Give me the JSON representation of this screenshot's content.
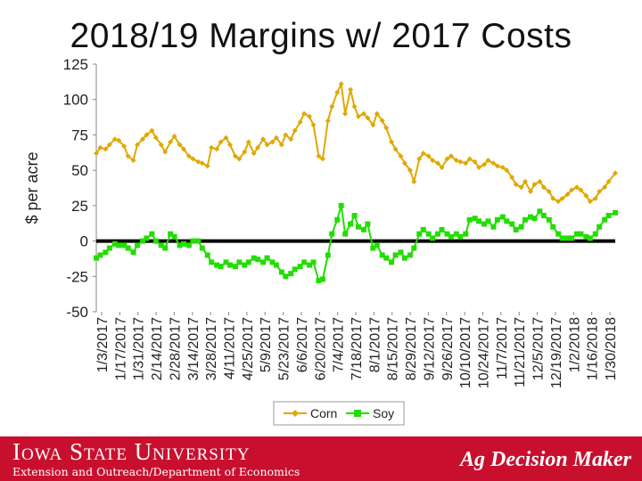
{
  "chart_data": {
    "type": "line",
    "title": "2018/19 Margins w/ 2017 Costs",
    "ylabel": "$ per acre",
    "xlabel": "",
    "ylim": [
      -50,
      125
    ],
    "yticks": [
      -50,
      -25,
      0,
      25,
      50,
      75,
      100,
      125
    ],
    "zero_line": true,
    "grid": false,
    "legend_position": "bottom-center",
    "x_start": "2017-01-03",
    "x_end": "2018-01-30",
    "x_tick_labels": [
      "1/3/2017",
      "1/17/2017",
      "1/31/2017",
      "2/14/2017",
      "2/28/2017",
      "3/14/2017",
      "3/28/2017",
      "4/11/2017",
      "4/25/2017",
      "5/9/2017",
      "5/23/2017",
      "6/6/2017",
      "6/20/2017",
      "7/4/2017",
      "7/18/2017",
      "8/1/2017",
      "8/15/2017",
      "8/29/2017",
      "9/12/2017",
      "9/26/2017",
      "10/10/2017",
      "10/24/2017",
      "11/7/2017",
      "11/21/2017",
      "12/5/2017",
      "12/19/2017",
      "1/2/2018",
      "1/16/2018",
      "1/30/2018"
    ],
    "series": [
      {
        "name": "Corn",
        "color": "#e0a800",
        "marker": "diamond",
        "points": [
          [
            "2017-01-03",
            62
          ],
          [
            "2017-01-06",
            66
          ],
          [
            "2017-01-10",
            65
          ],
          [
            "2017-01-13",
            68
          ],
          [
            "2017-01-17",
            72
          ],
          [
            "2017-01-20",
            71
          ],
          [
            "2017-01-24",
            67
          ],
          [
            "2017-01-27",
            60
          ],
          [
            "2017-01-31",
            57
          ],
          [
            "2017-02-03",
            68
          ],
          [
            "2017-02-07",
            72
          ],
          [
            "2017-02-10",
            75
          ],
          [
            "2017-02-14",
            78
          ],
          [
            "2017-02-17",
            73
          ],
          [
            "2017-02-21",
            68
          ],
          [
            "2017-02-24",
            63
          ],
          [
            "2017-02-28",
            70
          ],
          [
            "2017-03-03",
            74
          ],
          [
            "2017-03-07",
            68
          ],
          [
            "2017-03-10",
            65
          ],
          [
            "2017-03-14",
            60
          ],
          [
            "2017-03-17",
            58
          ],
          [
            "2017-03-21",
            56
          ],
          [
            "2017-03-24",
            55
          ],
          [
            "2017-03-28",
            53
          ],
          [
            "2017-03-31",
            66
          ],
          [
            "2017-04-04",
            65
          ],
          [
            "2017-04-07",
            70
          ],
          [
            "2017-04-11",
            73
          ],
          [
            "2017-04-14",
            68
          ],
          [
            "2017-04-18",
            60
          ],
          [
            "2017-04-21",
            58
          ],
          [
            "2017-04-25",
            63
          ],
          [
            "2017-04-28",
            70
          ],
          [
            "2017-05-02",
            62
          ],
          [
            "2017-05-05",
            66
          ],
          [
            "2017-05-09",
            72
          ],
          [
            "2017-05-12",
            68
          ],
          [
            "2017-05-16",
            70
          ],
          [
            "2017-05-19",
            73
          ],
          [
            "2017-05-23",
            68
          ],
          [
            "2017-05-26",
            75
          ],
          [
            "2017-05-30",
            72
          ],
          [
            "2017-06-02",
            78
          ],
          [
            "2017-06-06",
            84
          ],
          [
            "2017-06-09",
            90
          ],
          [
            "2017-06-13",
            88
          ],
          [
            "2017-06-16",
            82
          ],
          [
            "2017-06-20",
            60
          ],
          [
            "2017-06-23",
            58
          ],
          [
            "2017-06-27",
            85
          ],
          [
            "2017-06-30",
            95
          ],
          [
            "2017-07-04",
            105
          ],
          [
            "2017-07-07",
            111
          ],
          [
            "2017-07-10",
            90
          ],
          [
            "2017-07-14",
            107
          ],
          [
            "2017-07-17",
            95
          ],
          [
            "2017-07-20",
            88
          ],
          [
            "2017-07-24",
            90
          ],
          [
            "2017-07-27",
            87
          ],
          [
            "2017-07-31",
            82
          ],
          [
            "2017-08-03",
            90
          ],
          [
            "2017-08-07",
            85
          ],
          [
            "2017-08-10",
            80
          ],
          [
            "2017-08-14",
            70
          ],
          [
            "2017-08-17",
            65
          ],
          [
            "2017-08-21",
            60
          ],
          [
            "2017-08-24",
            55
          ],
          [
            "2017-08-28",
            50
          ],
          [
            "2017-08-31",
            42
          ],
          [
            "2017-09-04",
            58
          ],
          [
            "2017-09-07",
            62
          ],
          [
            "2017-09-11",
            60
          ],
          [
            "2017-09-14",
            57
          ],
          [
            "2017-09-18",
            55
          ],
          [
            "2017-09-21",
            52
          ],
          [
            "2017-09-25",
            58
          ],
          [
            "2017-09-28",
            60
          ],
          [
            "2017-10-02",
            57
          ],
          [
            "2017-10-05",
            56
          ],
          [
            "2017-10-09",
            55
          ],
          [
            "2017-10-12",
            58
          ],
          [
            "2017-10-16",
            56
          ],
          [
            "2017-10-19",
            52
          ],
          [
            "2017-10-23",
            54
          ],
          [
            "2017-10-26",
            57
          ],
          [
            "2017-10-30",
            55
          ],
          [
            "2017-11-02",
            53
          ],
          [
            "2017-11-06",
            52
          ],
          [
            "2017-11-09",
            50
          ],
          [
            "2017-11-13",
            45
          ],
          [
            "2017-11-16",
            40
          ],
          [
            "2017-11-20",
            38
          ],
          [
            "2017-11-23",
            42
          ],
          [
            "2017-11-27",
            35
          ],
          [
            "2017-11-30",
            40
          ],
          [
            "2017-12-04",
            42
          ],
          [
            "2017-12-07",
            38
          ],
          [
            "2017-12-11",
            35
          ],
          [
            "2017-12-14",
            30
          ],
          [
            "2017-12-18",
            28
          ],
          [
            "2017-12-21",
            30
          ],
          [
            "2017-12-25",
            33
          ],
          [
            "2017-12-28",
            36
          ],
          [
            "2018-01-01",
            38
          ],
          [
            "2018-01-04",
            36
          ],
          [
            "2018-01-08",
            32
          ],
          [
            "2018-01-11",
            28
          ],
          [
            "2018-01-15",
            30
          ],
          [
            "2018-01-18",
            35
          ],
          [
            "2018-01-22",
            38
          ],
          [
            "2018-01-25",
            42
          ],
          [
            "2018-01-30",
            48
          ]
        ]
      },
      {
        "name": "Soy",
        "color": "#22dd00",
        "marker": "square",
        "points": [
          [
            "2017-01-03",
            -12
          ],
          [
            "2017-01-06",
            -10
          ],
          [
            "2017-01-10",
            -8
          ],
          [
            "2017-01-13",
            -5
          ],
          [
            "2017-01-17",
            -2
          ],
          [
            "2017-01-20",
            -3
          ],
          [
            "2017-01-24",
            -3
          ],
          [
            "2017-01-27",
            -5
          ],
          [
            "2017-01-31",
            -8
          ],
          [
            "2017-02-03",
            -3
          ],
          [
            "2017-02-07",
            0
          ],
          [
            "2017-02-10",
            2
          ],
          [
            "2017-02-14",
            5
          ],
          [
            "2017-02-17",
            0
          ],
          [
            "2017-02-21",
            -3
          ],
          [
            "2017-02-24",
            -5
          ],
          [
            "2017-02-28",
            5
          ],
          [
            "2017-03-03",
            3
          ],
          [
            "2017-03-07",
            -3
          ],
          [
            "2017-03-10",
            -2
          ],
          [
            "2017-03-14",
            -3
          ],
          [
            "2017-03-17",
            0
          ],
          [
            "2017-03-21",
            0
          ],
          [
            "2017-03-24",
            -5
          ],
          [
            "2017-03-28",
            -10
          ],
          [
            "2017-03-31",
            -15
          ],
          [
            "2017-04-04",
            -17
          ],
          [
            "2017-04-07",
            -18
          ],
          [
            "2017-04-11",
            -15
          ],
          [
            "2017-04-14",
            -17
          ],
          [
            "2017-04-18",
            -18
          ],
          [
            "2017-04-21",
            -15
          ],
          [
            "2017-04-25",
            -17
          ],
          [
            "2017-04-28",
            -15
          ],
          [
            "2017-05-02",
            -12
          ],
          [
            "2017-05-05",
            -13
          ],
          [
            "2017-05-09",
            -15
          ],
          [
            "2017-05-12",
            -12
          ],
          [
            "2017-05-16",
            -15
          ],
          [
            "2017-05-19",
            -17
          ],
          [
            "2017-05-23",
            -22
          ],
          [
            "2017-05-26",
            -25
          ],
          [
            "2017-05-30",
            -23
          ],
          [
            "2017-06-02",
            -20
          ],
          [
            "2017-06-06",
            -18
          ],
          [
            "2017-06-09",
            -15
          ],
          [
            "2017-06-13",
            -17
          ],
          [
            "2017-06-16",
            -15
          ],
          [
            "2017-06-20",
            -28
          ],
          [
            "2017-06-23",
            -27
          ],
          [
            "2017-06-27",
            -10
          ],
          [
            "2017-06-30",
            5
          ],
          [
            "2017-07-04",
            15
          ],
          [
            "2017-07-07",
            25
          ],
          [
            "2017-07-10",
            5
          ],
          [
            "2017-07-14",
            12
          ],
          [
            "2017-07-17",
            18
          ],
          [
            "2017-07-20",
            10
          ],
          [
            "2017-07-24",
            8
          ],
          [
            "2017-07-27",
            12
          ],
          [
            "2017-07-31",
            -5
          ],
          [
            "2017-08-03",
            -3
          ],
          [
            "2017-08-07",
            -10
          ],
          [
            "2017-08-10",
            -12
          ],
          [
            "2017-08-14",
            -15
          ],
          [
            "2017-08-17",
            -10
          ],
          [
            "2017-08-21",
            -8
          ],
          [
            "2017-08-24",
            -12
          ],
          [
            "2017-08-28",
            -10
          ],
          [
            "2017-08-31",
            -5
          ],
          [
            "2017-09-04",
            5
          ],
          [
            "2017-09-07",
            8
          ],
          [
            "2017-09-11",
            5
          ],
          [
            "2017-09-14",
            2
          ],
          [
            "2017-09-18",
            5
          ],
          [
            "2017-09-21",
            8
          ],
          [
            "2017-09-25",
            5
          ],
          [
            "2017-09-28",
            3
          ],
          [
            "2017-10-02",
            5
          ],
          [
            "2017-10-05",
            3
          ],
          [
            "2017-10-09",
            5
          ],
          [
            "2017-10-12",
            15
          ],
          [
            "2017-10-16",
            16
          ],
          [
            "2017-10-19",
            14
          ],
          [
            "2017-10-23",
            12
          ],
          [
            "2017-10-26",
            14
          ],
          [
            "2017-10-30",
            10
          ],
          [
            "2017-11-02",
            15
          ],
          [
            "2017-11-06",
            17
          ],
          [
            "2017-11-09",
            14
          ],
          [
            "2017-11-13",
            12
          ],
          [
            "2017-11-16",
            8
          ],
          [
            "2017-11-20",
            10
          ],
          [
            "2017-11-23",
            15
          ],
          [
            "2017-11-27",
            17
          ],
          [
            "2017-11-30",
            16
          ],
          [
            "2017-12-04",
            21
          ],
          [
            "2017-12-07",
            18
          ],
          [
            "2017-12-11",
            15
          ],
          [
            "2017-12-14",
            10
          ],
          [
            "2017-12-18",
            5
          ],
          [
            "2017-12-21",
            2
          ],
          [
            "2017-12-25",
            2
          ],
          [
            "2017-12-28",
            2
          ],
          [
            "2018-01-01",
            5
          ],
          [
            "2018-01-04",
            5
          ],
          [
            "2018-01-08",
            3
          ],
          [
            "2018-01-11",
            2
          ],
          [
            "2018-01-15",
            5
          ],
          [
            "2018-01-18",
            10
          ],
          [
            "2018-01-22",
            15
          ],
          [
            "2018-01-25",
            18
          ],
          [
            "2018-01-30",
            20
          ]
        ]
      }
    ]
  },
  "footer": {
    "university": "Iowa State University",
    "department": "Extension and Outreach/Department of Economics",
    "tool": "Ag Decision Maker",
    "background_color": "#c8102e"
  }
}
